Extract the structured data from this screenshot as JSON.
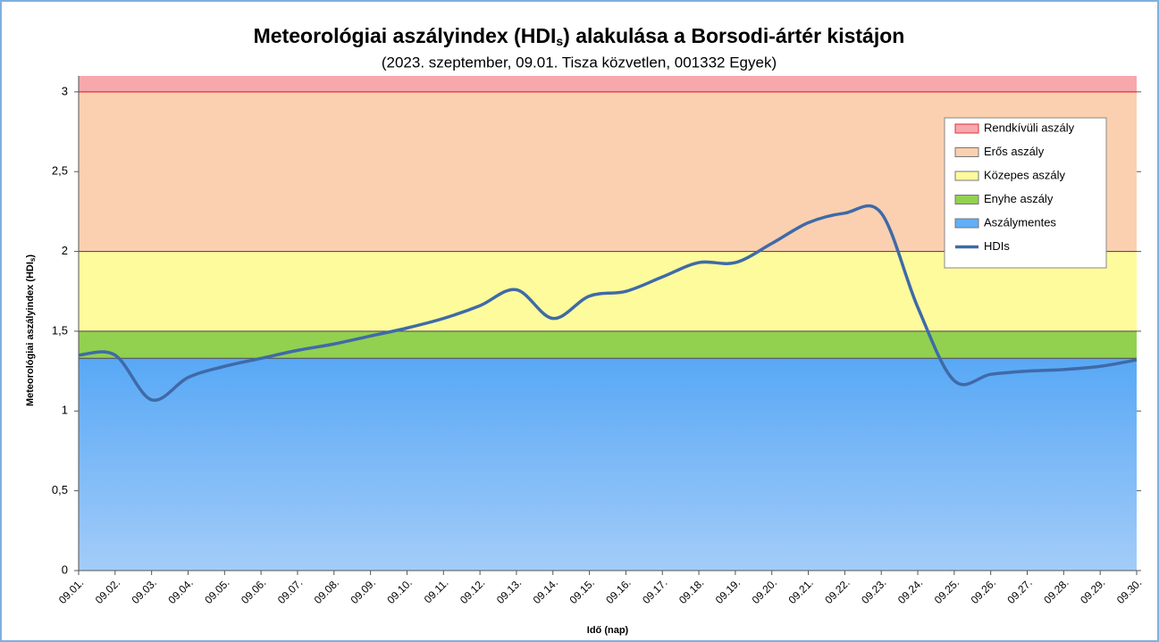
{
  "chart_data": {
    "type": "line",
    "title": [
      "Meteorológiai aszályindex (HDI",
      "s",
      ") alakulása a Borsodi-ártér kistájon"
    ],
    "subtitle": "(2023. szeptember, 09.01. Tisza közvetlen, 001332 Egyek)",
    "x_label": "Idő (nap)",
    "y_label": [
      "Meteorológiai aszályindex (HDI",
      "s",
      ")"
    ],
    "categories": [
      "09.01.",
      "09.02.",
      "09.03.",
      "09.04.",
      "09.05.",
      "09.06.",
      "09.07.",
      "09.08.",
      "09.09.",
      "09.10.",
      "09.11.",
      "09.12.",
      "09.13.",
      "09.14.",
      "09.15.",
      "09.16.",
      "09.17.",
      "09.18.",
      "09.19.",
      "09.20.",
      "09.21.",
      "09.22.",
      "09.23.",
      "09.24.",
      "09.25.",
      "09.26.",
      "09.27.",
      "09.28.",
      "09.29.",
      "09.30."
    ],
    "series": [
      {
        "name": "HDIs",
        "color": "#3f6aa8",
        "values": [
          1.35,
          1.35,
          1.07,
          1.21,
          1.28,
          1.33,
          1.38,
          1.42,
          1.47,
          1.52,
          1.58,
          1.66,
          1.76,
          1.58,
          1.72,
          1.75,
          1.84,
          1.93,
          1.93,
          2.05,
          2.18,
          2.24,
          2.24,
          1.65,
          1.19,
          1.23,
          1.25,
          1.26,
          1.28,
          1.32
        ]
      }
    ],
    "bands": [
      {
        "name": "Rendkívüli aszály",
        "color": "#f7a8ad",
        "border": "#e0303a",
        "from": 3,
        "to": 3.1
      },
      {
        "name": "Erős aszály",
        "color": "#fbd0b0",
        "border": "#555555",
        "from": 2,
        "to": 3
      },
      {
        "name": "Közepes aszály",
        "color": "#fdfb9c",
        "border": "#555555",
        "from": 1.5,
        "to": 2
      },
      {
        "name": "Enyhe aszály",
        "color": "#92d050",
        "border": "#555555",
        "from": 1.33,
        "to": 1.5
      },
      {
        "name": "Aszálymentes",
        "color": "#62aef7",
        "border": "#555555",
        "from": 0,
        "to": 1.33
      }
    ],
    "ylim": [
      0,
      3.1
    ],
    "yticks": [
      0,
      {
        "value": 0.5,
        "label": "0,5"
      },
      1,
      {
        "value": 1.5,
        "label": "1,5"
      },
      2,
      {
        "value": 2.5,
        "label": "2,5"
      },
      3
    ],
    "legend": "upper right"
  }
}
